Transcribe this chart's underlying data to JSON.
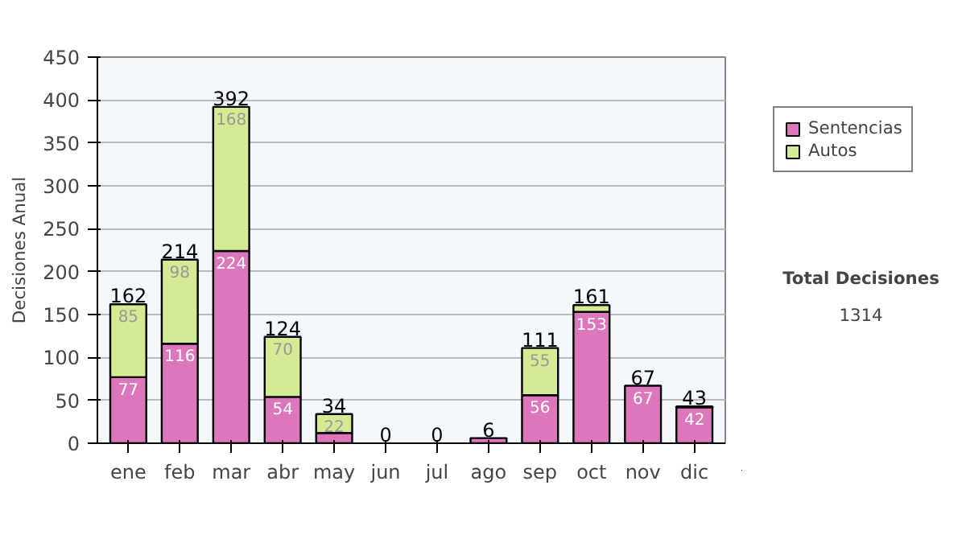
{
  "chart_data": {
    "type": "bar",
    "stacked": true,
    "ylabel": "Decisiones Anual",
    "categories": [
      "ene",
      "feb",
      "mar",
      "abr",
      "may",
      "jun",
      "jul",
      "ago",
      "sep",
      "oct",
      "nov",
      "dic"
    ],
    "series": [
      {
        "name": "Sentencias",
        "color": "#dd77bb",
        "values": [
          77,
          116,
          224,
          54,
          12,
          0,
          0,
          6,
          56,
          153,
          67,
          42
        ],
        "value_labels": [
          "77",
          "116",
          "224",
          "54",
          null,
          null,
          null,
          null,
          "56",
          "153",
          "67",
          "42"
        ]
      },
      {
        "name": "Autos",
        "color": "#d4ea94",
        "values": [
          85,
          98,
          168,
          70,
          22,
          0,
          0,
          0,
          55,
          8,
          0,
          1
        ],
        "value_labels": [
          "85",
          "98",
          "168",
          "70",
          "22",
          null,
          null,
          null,
          "55",
          null,
          null,
          null
        ]
      }
    ],
    "totals": [
      "162",
      "214",
      "392",
      "124",
      "34",
      "0",
      "0",
      "6",
      "111",
      "161",
      "67",
      "43"
    ],
    "ylim": [
      0,
      450
    ],
    "yticks": [
      0,
      50,
      100,
      150,
      200,
      250,
      300,
      350,
      400,
      450
    ],
    "grid": "y",
    "legend": "right",
    "annotations": [
      "Total Decisiones",
      "1314"
    ]
  }
}
